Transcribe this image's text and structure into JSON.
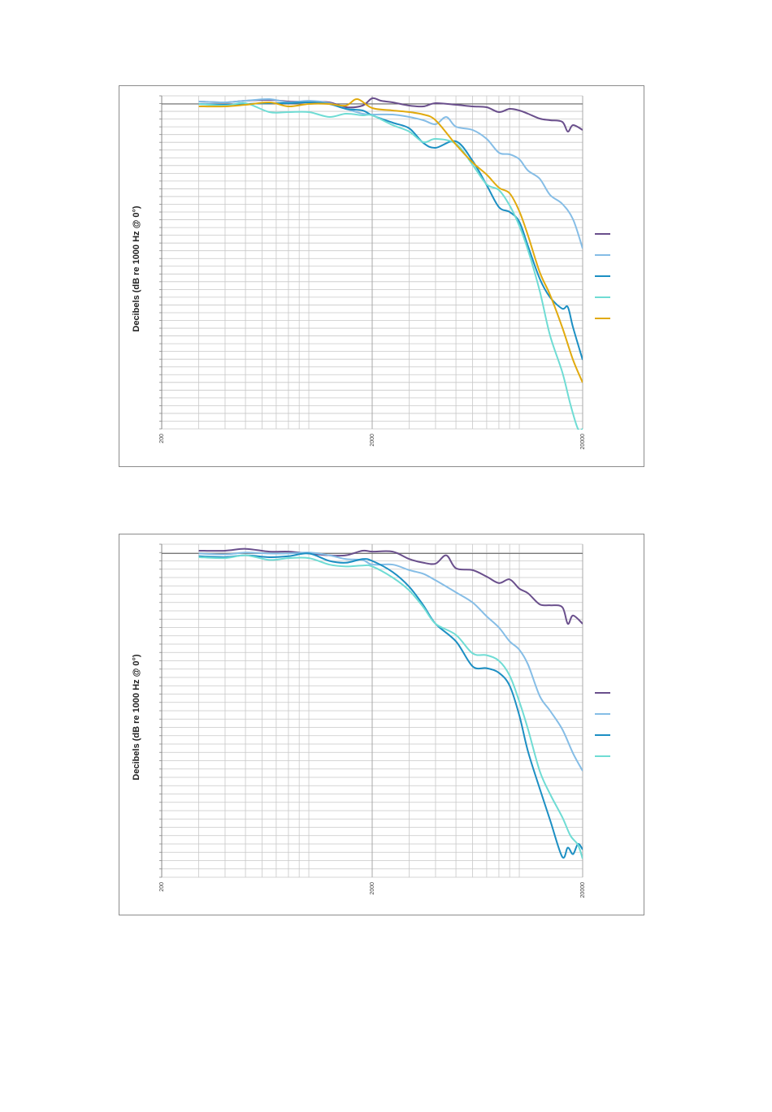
{
  "chart_data": [
    {
      "type": "line",
      "ylabel": "Decibels (dB re 1000 Hz @ 0°)",
      "xscale": "log",
      "xlim": [
        200,
        20000
      ],
      "x_tick_labels": [
        "200",
        "2000",
        "20000"
      ],
      "ylim": [
        -40,
        1
      ],
      "grid": true,
      "legend": "right, line samples without text",
      "series": [
        {
          "color": "#6a4f8c",
          "x": [
            300,
            400,
            500,
            650,
            800,
            1000,
            1250,
            1500,
            1800,
            2000,
            2200,
            2500,
            3000,
            3500,
            4000,
            5000,
            6000,
            7000,
            8000,
            9000,
            10000,
            11000,
            12500,
            14000,
            16000,
            17000,
            18000,
            20000
          ],
          "y": [
            0.3,
            0.2,
            0.4,
            0.5,
            0.3,
            0.3,
            0.2,
            -0.4,
            -0.2,
            0.7,
            0.4,
            0.2,
            -0.2,
            -0.3,
            0.1,
            -0.1,
            -0.3,
            -0.4,
            -1.0,
            -0.6,
            -0.8,
            -1.2,
            -1.8,
            -2.0,
            -2.2,
            -3.4,
            -2.6,
            -3.2
          ]
        },
        {
          "color": "#85bde6",
          "x": [
            300,
            400,
            500,
            650,
            800,
            1000,
            1250,
            1500,
            1800,
            2000,
            2500,
            3000,
            3500,
            4000,
            4500,
            5000,
            6000,
            7000,
            8000,
            9000,
            10000,
            11000,
            12500,
            14000,
            16000,
            18000,
            20000
          ],
          "y": [
            0.3,
            0.2,
            0.4,
            0.6,
            0.2,
            0.4,
            0.1,
            -0.6,
            -1.2,
            -1.3,
            -1.3,
            -1.6,
            -2.0,
            -2.5,
            -1.6,
            -2.8,
            -3.2,
            -4.3,
            -6.0,
            -6.2,
            -6.8,
            -8.2,
            -9.2,
            -11.2,
            -12.3,
            -14.2,
            -17.8
          ]
        },
        {
          "color": "#1c8fc3",
          "x": [
            300,
            400,
            500,
            650,
            800,
            1000,
            1250,
            1500,
            1800,
            2000,
            2500,
            3000,
            3500,
            4000,
            5000,
            6000,
            7000,
            8000,
            9000,
            10000,
            11000,
            12500,
            14000,
            16000,
            17000,
            18000,
            20000
          ],
          "y": [
            0.0,
            -0.1,
            0.0,
            0.1,
            0.1,
            0.2,
            0.0,
            -0.6,
            -0.8,
            -1.4,
            -2.3,
            -3.0,
            -4.8,
            -5.4,
            -4.6,
            -7.0,
            -10.0,
            -12.7,
            -13.3,
            -14.5,
            -17.5,
            -21.5,
            -23.8,
            -25.2,
            -25.0,
            -27.5,
            -31.5
          ]
        },
        {
          "color": "#6fdcd4",
          "x": [
            300,
            400,
            500,
            650,
            800,
            1000,
            1250,
            1500,
            1800,
            2000,
            2500,
            3000,
            3500,
            4000,
            5000,
            6000,
            7000,
            8000,
            9000,
            10000,
            11000,
            12500,
            14000,
            16000,
            17500,
            19000,
            20000
          ],
          "y": [
            0.0,
            -0.2,
            0.1,
            -1.0,
            -1.0,
            -1.0,
            -1.6,
            -1.2,
            -1.4,
            -1.4,
            -2.6,
            -3.4,
            -4.7,
            -4.3,
            -4.9,
            -7.5,
            -9.9,
            -10.6,
            -12.5,
            -15.0,
            -18.0,
            -23.0,
            -28.5,
            -33.0,
            -37.0,
            -40.0,
            -40.0
          ]
        },
        {
          "color": "#e1aa0e",
          "x": [
            300,
            400,
            500,
            650,
            800,
            1000,
            1250,
            1500,
            1700,
            2000,
            2500,
            3000,
            3500,
            4000,
            5000,
            6000,
            7000,
            8000,
            9000,
            10000,
            11000,
            12500,
            14000,
            16000,
            18000,
            20000
          ],
          "y": [
            -0.3,
            -0.3,
            -0.1,
            0.2,
            -0.3,
            0.0,
            0.0,
            -0.2,
            0.6,
            -0.5,
            -0.8,
            -1.0,
            -1.3,
            -2.0,
            -5.0,
            -7.2,
            -8.7,
            -10.3,
            -11.0,
            -13.2,
            -16.2,
            -20.7,
            -23.5,
            -27.5,
            -31.5,
            -34.3
          ]
        }
      ]
    },
    {
      "type": "line",
      "ylabel": "Decibels (dB re 1000 Hz @ 0°)",
      "xscale": "log",
      "xlim": [
        200,
        20000
      ],
      "x_tick_labels": [
        "200",
        "2000",
        "20000"
      ],
      "ylim": [
        -35,
        1
      ],
      "grid": true,
      "legend": "right, line samples without text",
      "series": [
        {
          "color": "#6a4f8c",
          "x": [
            300,
            400,
            500,
            650,
            800,
            1000,
            1250,
            1500,
            1800,
            2000,
            2500,
            3000,
            3500,
            4000,
            4500,
            5000,
            6000,
            7000,
            8000,
            9000,
            10000,
            11000,
            12500,
            14000,
            16000,
            17000,
            18000,
            20000
          ],
          "y": [
            0.3,
            0.3,
            0.5,
            0.2,
            0.2,
            0.0,
            -0.2,
            -0.2,
            0.3,
            0.2,
            0.2,
            -0.6,
            -1.0,
            -1.1,
            -0.2,
            -1.6,
            -1.8,
            -2.5,
            -3.2,
            -2.8,
            -3.8,
            -4.3,
            -5.5,
            -5.6,
            -5.8,
            -7.6,
            -6.7,
            -7.6
          ]
        },
        {
          "color": "#85bde6",
          "x": [
            300,
            400,
            500,
            650,
            800,
            1000,
            1250,
            1500,
            1800,
            2000,
            2500,
            3000,
            3500,
            4000,
            5000,
            6000,
            7000,
            8000,
            9000,
            10000,
            11000,
            12500,
            14000,
            16000,
            18000,
            20000
          ],
          "y": [
            0.0,
            -0.1,
            0.1,
            0.0,
            0.0,
            0.1,
            -0.2,
            -0.6,
            -0.7,
            -1.2,
            -1.2,
            -1.8,
            -2.2,
            -2.9,
            -4.2,
            -5.3,
            -6.8,
            -8.0,
            -9.5,
            -10.4,
            -12.0,
            -15.4,
            -17.0,
            -19.0,
            -21.6,
            -23.5
          ]
        },
        {
          "color": "#1c8fc3",
          "x": [
            300,
            400,
            500,
            650,
            800,
            1000,
            1250,
            1500,
            1800,
            2000,
            2500,
            3000,
            3500,
            4000,
            5000,
            6000,
            7000,
            8000,
            9000,
            10000,
            11000,
            12500,
            14000,
            16000,
            17000,
            18000,
            19000,
            20000
          ],
          "y": [
            -0.3,
            -0.4,
            -0.2,
            -0.4,
            -0.3,
            0.0,
            -0.8,
            -1.0,
            -0.6,
            -0.8,
            -2.0,
            -3.6,
            -5.6,
            -7.6,
            -9.5,
            -12.2,
            -12.4,
            -12.9,
            -14.3,
            -17.5,
            -21.4,
            -25.4,
            -28.8,
            -32.8,
            -31.8,
            -32.5,
            -31.4,
            -32.0
          ]
        },
        {
          "color": "#6fdcd4",
          "x": [
            300,
            400,
            500,
            650,
            800,
            1000,
            1250,
            1500,
            1800,
            2000,
            2500,
            3000,
            3500,
            4000,
            5000,
            6000,
            7000,
            8000,
            9000,
            10000,
            11000,
            12500,
            14000,
            16000,
            17500,
            19000,
            20000
          ],
          "y": [
            -0.4,
            -0.5,
            -0.2,
            -0.7,
            -0.5,
            -0.5,
            -1.2,
            -1.4,
            -1.3,
            -1.4,
            -2.6,
            -4.0,
            -5.8,
            -7.6,
            -8.8,
            -10.8,
            -11.0,
            -11.6,
            -13.2,
            -16.0,
            -19.0,
            -23.5,
            -26.0,
            -28.5,
            -30.5,
            -31.5,
            -33.0
          ]
        }
      ]
    }
  ]
}
